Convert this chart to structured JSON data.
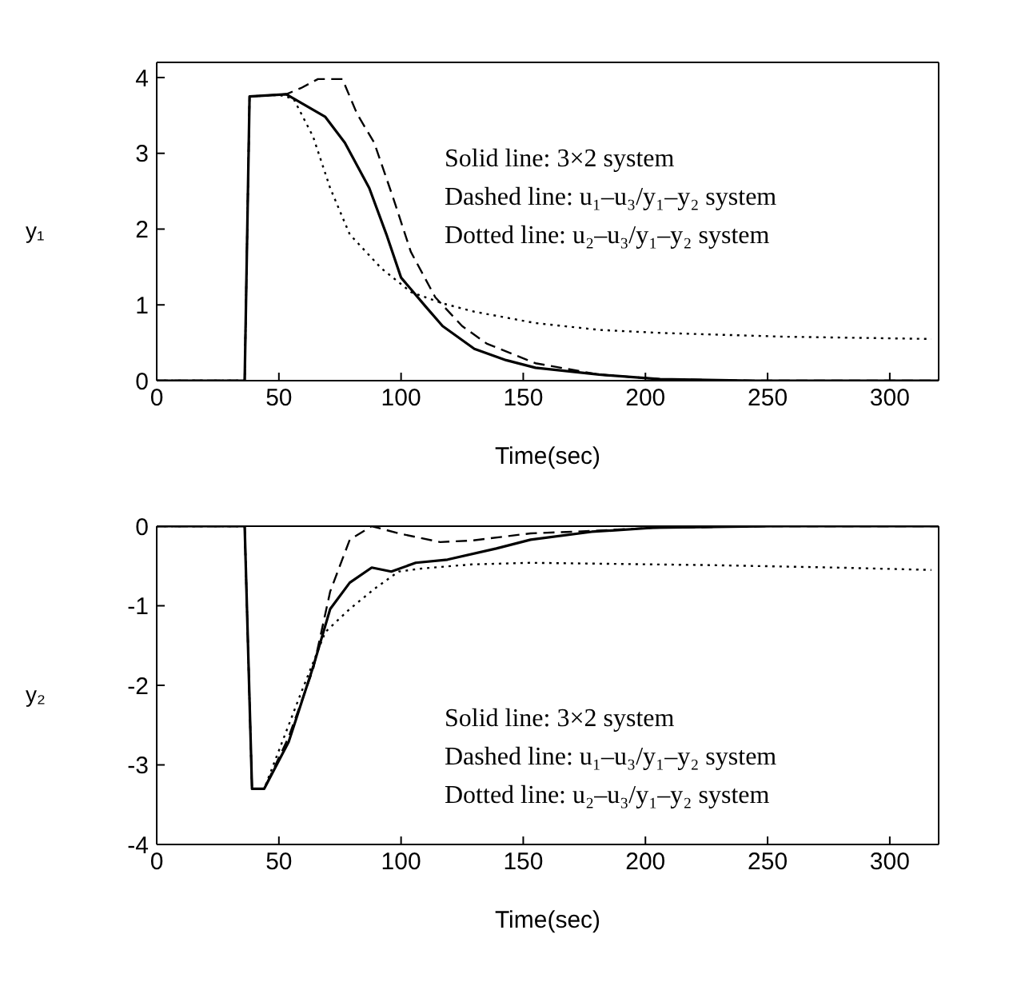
{
  "chart_data": [
    {
      "type": "line",
      "xlabel": "Time(sec)",
      "ylabel": "y₁",
      "xlim": [
        0,
        320
      ],
      "xticks": [
        0,
        50,
        100,
        150,
        200,
        250,
        300
      ],
      "ylim": [
        0,
        4.2
      ],
      "yticks": [
        0,
        1,
        2,
        3,
        4
      ],
      "grid": false,
      "legend": false,
      "marker": "none",
      "annotations": [
        "Solid line:  3×2 system",
        "Dashed line:  u₁–u₃/y₁–y₂ system",
        "Dotted line:  u₂–u₃/y₁–y₂ system"
      ],
      "series": [
        {
          "color": "#000000",
          "line_style": "solid",
          "x": [
            0,
            36,
            38,
            53,
            69,
            77,
            87,
            94,
            100,
            110,
            117,
            130,
            143,
            155,
            181,
            206,
            244,
            320
          ],
          "values": [
            0,
            0,
            3.75,
            3.78,
            3.48,
            3.14,
            2.54,
            1.93,
            1.36,
            0.98,
            0.72,
            0.42,
            0.27,
            0.17,
            0.08,
            0.02,
            0,
            0
          ]
        },
        {
          "color": "#000000",
          "line_style": "dashed",
          "x": [
            0,
            36,
            38,
            53,
            59,
            66,
            76,
            82,
            89,
            97,
            104,
            114,
            125,
            135,
            155,
            181,
            206,
            244,
            320
          ],
          "values": [
            0,
            0,
            3.75,
            3.78,
            3.86,
            3.98,
            3.98,
            3.52,
            3.14,
            2.39,
            1.7,
            1.1,
            0.72,
            0.49,
            0.23,
            0.08,
            0.02,
            0,
            0
          ]
        },
        {
          "color": "#000000",
          "line_style": "dotted",
          "x": [
            0,
            36,
            38,
            50,
            56,
            64,
            71,
            79,
            92,
            104,
            117,
            130,
            155,
            181,
            206,
            257,
            317
          ],
          "values": [
            0,
            0,
            3.75,
            3.77,
            3.72,
            3.22,
            2.54,
            1.93,
            1.48,
            1.17,
            1.02,
            0.91,
            0.76,
            0.67,
            0.63,
            0.58,
            0.55
          ]
        }
      ]
    },
    {
      "type": "line",
      "xlabel": "Time(sec)",
      "ylabel": "y₂",
      "xlim": [
        0,
        320
      ],
      "xticks": [
        0,
        50,
        100,
        150,
        200,
        250,
        300
      ],
      "ylim": [
        -4,
        0
      ],
      "yticks": [
        -4,
        -3,
        -2,
        -1,
        0
      ],
      "grid": false,
      "legend": false,
      "marker": "none",
      "annotations": [
        "Solid line:  3×2 system",
        "Dashed line:  u₁–u₃/y₁–y₂ system",
        "Dotted line:  u₂–u₃/y₁–y₂ system"
      ],
      "series": [
        {
          "color": "#000000",
          "line_style": "solid",
          "x": [
            0,
            36,
            39,
            44,
            54,
            64,
            71,
            79,
            88,
            96,
            106,
            119,
            139,
            153,
            178,
            203,
            253,
            320
          ],
          "values": [
            0,
            0,
            -3.3,
            -3.3,
            -2.71,
            -1.77,
            -1.04,
            -0.71,
            -0.52,
            -0.57,
            -0.46,
            -0.42,
            -0.28,
            -0.17,
            -0.07,
            -0.02,
            0,
            0
          ]
        },
        {
          "color": "#000000",
          "line_style": "dashed",
          "x": [
            0,
            36,
            39,
            44,
            54,
            64,
            71,
            79,
            88,
            99,
            116,
            129,
            153,
            178,
            203,
            253,
            320
          ],
          "values": [
            0,
            0,
            -3.3,
            -3.3,
            -2.65,
            -1.8,
            -0.82,
            -0.17,
            0,
            -0.09,
            -0.2,
            -0.18,
            -0.09,
            -0.06,
            -0.02,
            0,
            0
          ]
        },
        {
          "color": "#000000",
          "line_style": "dotted",
          "x": [
            0,
            36,
            39,
            44,
            49,
            59,
            69,
            79,
            89,
            99,
            109,
            129,
            153,
            178,
            228,
            278,
            317
          ],
          "values": [
            0,
            0,
            -3.3,
            -3.3,
            -2.9,
            -2.1,
            -1.33,
            -1.04,
            -0.79,
            -0.57,
            -0.53,
            -0.48,
            -0.46,
            -0.47,
            -0.49,
            -0.52,
            -0.55
          ]
        }
      ]
    }
  ]
}
